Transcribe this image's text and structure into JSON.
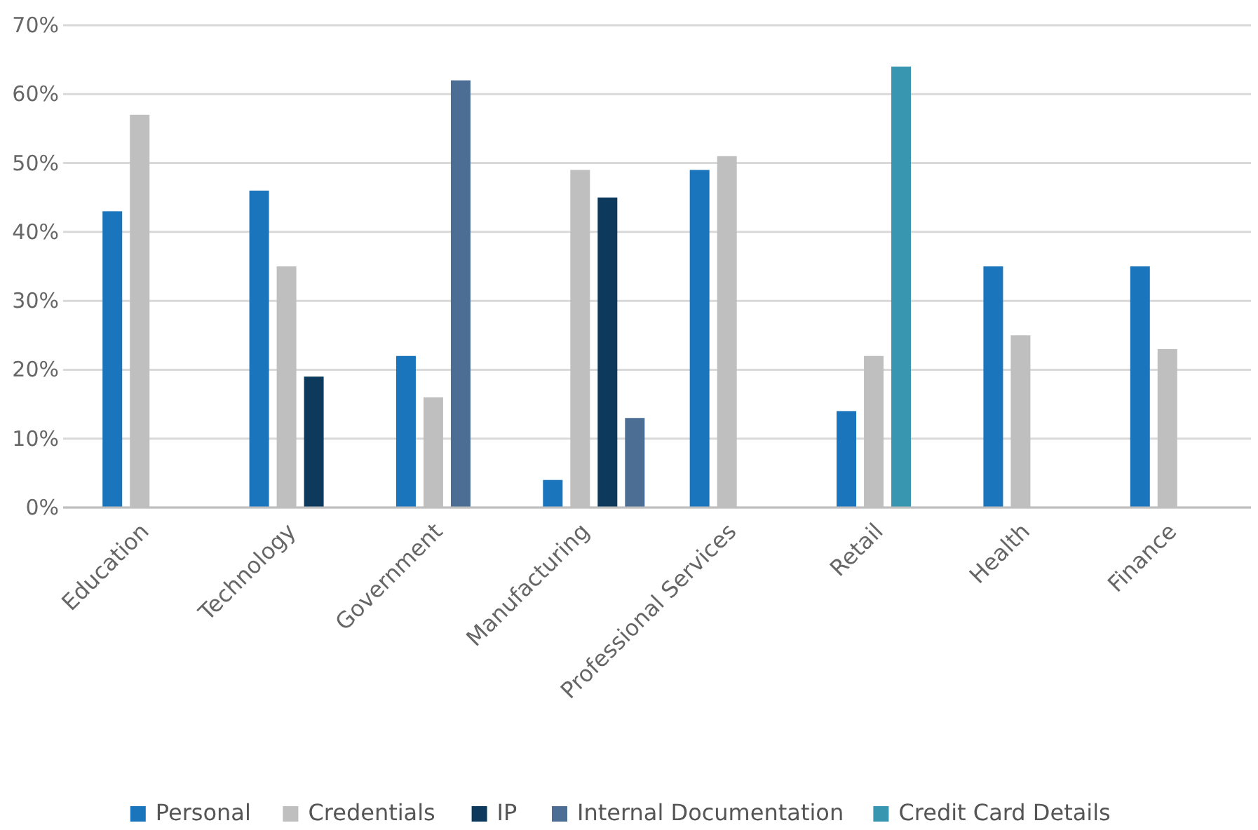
{
  "chart_data": {
    "type": "bar",
    "categories": [
      "Education",
      "Technology",
      "Government",
      "Manufacturing",
      "Professional Services",
      "Retail",
      "Health",
      "Finance"
    ],
    "series": [
      {
        "name": "Personal",
        "color": "#1a75bc",
        "values": [
          43,
          46,
          22,
          4,
          49,
          14,
          35,
          35
        ]
      },
      {
        "name": "Credentials",
        "color": "#bfbfbf",
        "values": [
          57,
          35,
          16,
          49,
          51,
          22,
          25,
          23
        ]
      },
      {
        "name": "IP",
        "color": "#0d3a5c",
        "values": [
          null,
          19,
          null,
          45,
          null,
          null,
          null,
          null
        ]
      },
      {
        "name": "Internal Documentation",
        "color": "#4d6e94",
        "values": [
          null,
          null,
          62,
          13,
          null,
          null,
          null,
          null
        ]
      },
      {
        "name": "Credit Card Details",
        "color": "#3896b0",
        "values": [
          null,
          null,
          null,
          null,
          null,
          64,
          null,
          null
        ]
      }
    ],
    "ylim": [
      0,
      70
    ],
    "yticks": [
      {
        "value": 0,
        "label": "0%"
      },
      {
        "value": 10,
        "label": "10%"
      },
      {
        "value": 20,
        "label": "20%"
      },
      {
        "value": 30,
        "label": "30%"
      },
      {
        "value": 40,
        "label": "40%"
      },
      {
        "value": 50,
        "label": "50%"
      },
      {
        "value": 60,
        "label": "60%"
      },
      {
        "value": 70,
        "label": "70%"
      }
    ],
    "grid": "y",
    "legend": "bottom"
  }
}
